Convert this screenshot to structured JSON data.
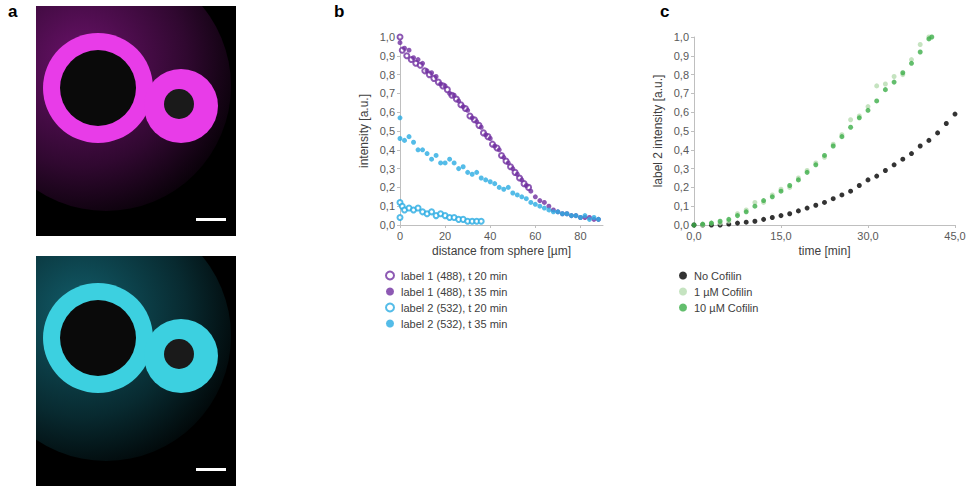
{
  "panel_labels": [
    "a",
    "b",
    "c"
  ],
  "chart_data": [
    {
      "type": "scatter",
      "x_label": "distance from sphere [µm]",
      "y_label": "intensity [a.u.]",
      "xlim": [
        0,
        90
      ],
      "xticks": [
        0,
        20,
        40,
        60,
        80
      ],
      "ylim": [
        0,
        1
      ],
      "yticks": [
        {
          "value": 0,
          "label": "0,0"
        },
        {
          "value": 0.1,
          "label": "0,1"
        },
        {
          "value": 0.2,
          "label": "0,2"
        },
        {
          "value": 0.3,
          "label": "0,3"
        },
        {
          "value": 0.4,
          "label": "0,4"
        },
        {
          "value": 0.5,
          "label": "0,5"
        },
        {
          "value": 0.6,
          "label": "0,6"
        },
        {
          "value": 0.7,
          "label": "0,7"
        },
        {
          "value": 0.8,
          "label": "0,8"
        },
        {
          "value": 0.9,
          "label": "0,9"
        },
        {
          "value": 1,
          "label": "1,0"
        }
      ],
      "grid": false,
      "legend": "below",
      "series": [
        {
          "name": "label 1 (488), t 20 min",
          "color": "#7030a0",
          "marker": "open circle",
          "x": [
            0,
            1,
            3,
            5,
            7,
            9,
            11,
            13,
            15,
            17,
            19,
            21,
            23,
            25,
            27,
            29,
            31,
            33,
            35,
            37,
            39,
            41,
            43,
            45,
            47,
            49,
            51,
            53,
            55,
            57
          ],
          "values": [
            1.0,
            0.93,
            0.9,
            0.88,
            0.86,
            0.85,
            0.82,
            0.8,
            0.78,
            0.76,
            0.74,
            0.72,
            0.69,
            0.67,
            0.64,
            0.62,
            0.58,
            0.56,
            0.53,
            0.49,
            0.47,
            0.43,
            0.41,
            0.37,
            0.34,
            0.31,
            0.28,
            0.25,
            0.22,
            0.2
          ]
        },
        {
          "name": "label 1 (488), t 35 min",
          "color": "#7030a0",
          "marker": "circle",
          "x": [
            0,
            2,
            4,
            6,
            8,
            10,
            12,
            14,
            16,
            18,
            20,
            22,
            24,
            26,
            28,
            30,
            32,
            34,
            36,
            38,
            40,
            42,
            44,
            46,
            48,
            50,
            52,
            54,
            56,
            58,
            60,
            62,
            64,
            66,
            68,
            70,
            72,
            74,
            76,
            78,
            80,
            82,
            84,
            86,
            88
          ],
          "values": [
            0.97,
            0.94,
            0.93,
            0.89,
            0.88,
            0.86,
            0.82,
            0.81,
            0.79,
            0.75,
            0.74,
            0.7,
            0.69,
            0.66,
            0.63,
            0.61,
            0.57,
            0.55,
            0.52,
            0.48,
            0.46,
            0.42,
            0.4,
            0.36,
            0.33,
            0.3,
            0.27,
            0.24,
            0.21,
            0.18,
            0.15,
            0.13,
            0.12,
            0.1,
            0.08,
            0.07,
            0.06,
            0.06,
            0.05,
            0.05,
            0.04,
            0.04,
            0.04,
            0.03,
            0.03
          ]
        },
        {
          "name": "label 2 (532), t 20 min",
          "color": "#29abe2",
          "marker": "open circle",
          "x": [
            0,
            0,
            1,
            2,
            4,
            6,
            8,
            10,
            12,
            14,
            16,
            18,
            20,
            22,
            24,
            26,
            28,
            30,
            32,
            34,
            36
          ],
          "values": [
            0.12,
            0.04,
            0.1,
            0.08,
            0.09,
            0.08,
            0.09,
            0.07,
            0.06,
            0.07,
            0.05,
            0.06,
            0.05,
            0.04,
            0.04,
            0.03,
            0.03,
            0.02,
            0.02,
            0.02,
            0.02
          ]
        },
        {
          "name": "label 2 (532), t 35 min",
          "color": "#29abe2",
          "marker": "circle",
          "x": [
            0,
            0,
            2,
            4,
            6,
            8,
            10,
            12,
            14,
            16,
            18,
            20,
            22,
            24,
            26,
            28,
            30,
            32,
            34,
            36,
            38,
            40,
            42,
            44,
            46,
            48,
            50,
            52,
            54,
            56,
            58,
            60,
            62,
            64,
            66,
            68,
            70,
            72,
            74,
            76,
            78,
            80,
            82,
            84,
            86,
            88
          ],
          "values": [
            0.57,
            0.46,
            0.45,
            0.47,
            0.44,
            0.4,
            0.4,
            0.38,
            0.35,
            0.37,
            0.33,
            0.33,
            0.35,
            0.33,
            0.3,
            0.31,
            0.28,
            0.27,
            0.28,
            0.25,
            0.24,
            0.23,
            0.22,
            0.2,
            0.19,
            0.2,
            0.17,
            0.16,
            0.15,
            0.14,
            0.12,
            0.11,
            0.1,
            0.09,
            0.08,
            0.07,
            0.07,
            0.06,
            0.06,
            0.05,
            0.05,
            0.04,
            0.05,
            0.03,
            0.04,
            0.03
          ]
        }
      ]
    },
    {
      "type": "scatter",
      "x_label": "time [min]",
      "y_label": "label 2 intensity [a.u.]",
      "xlim": [
        0,
        45
      ],
      "xticks": [
        {
          "value": 0,
          "label": "0,0"
        },
        {
          "value": 15,
          "label": "15,0"
        },
        {
          "value": 30,
          "label": "30,0"
        },
        {
          "value": 45,
          "label": "45,0"
        }
      ],
      "ylim": [
        0,
        1
      ],
      "yticks": [
        {
          "value": 0,
          "label": "0,0"
        },
        {
          "value": 0.1,
          "label": "0,1"
        },
        {
          "value": 0.2,
          "label": "0,2"
        },
        {
          "value": 0.3,
          "label": "0,3"
        },
        {
          "value": 0.4,
          "label": "0,4"
        },
        {
          "value": 0.5,
          "label": "0,5"
        },
        {
          "value": 0.6,
          "label": "0,6"
        },
        {
          "value": 0.7,
          "label": "0,7"
        },
        {
          "value": 0.8,
          "label": "0,8"
        },
        {
          "value": 0.9,
          "label": "0,9"
        },
        {
          "value": 1,
          "label": "1,0"
        }
      ],
      "grid": false,
      "legend": "below",
      "series": [
        {
          "name": "No Cofilin",
          "color": "#000000",
          "marker": "circle",
          "x": [
            0,
            1.5,
            3,
            4.5,
            6,
            7.5,
            9,
            10.5,
            12,
            13.5,
            15,
            16.5,
            18,
            19.5,
            21,
            22.5,
            24,
            25.5,
            27,
            28.5,
            30,
            31.5,
            33,
            34.5,
            36,
            37.5,
            39,
            40.5,
            42,
            43.5,
            45
          ],
          "values": [
            0,
            0,
            0,
            0,
            0.005,
            0.01,
            0.015,
            0.02,
            0.03,
            0.04,
            0.05,
            0.06,
            0.075,
            0.09,
            0.105,
            0.12,
            0.14,
            0.16,
            0.18,
            0.21,
            0.24,
            0.26,
            0.29,
            0.32,
            0.35,
            0.38,
            0.42,
            0.45,
            0.49,
            0.54,
            0.59
          ]
        },
        {
          "name": "1 µM Cofilin",
          "color": "#b6dcb0",
          "marker": "circle",
          "x": [
            1.5,
            3,
            4.5,
            6,
            7.5,
            9,
            10.5,
            12,
            13.5,
            15,
            16.5,
            18,
            19.5,
            21,
            22.5,
            24,
            25.5,
            27,
            28.5,
            30,
            31.5,
            33,
            34.5,
            36,
            37.5,
            39,
            40.5
          ],
          "values": [
            0,
            0.01,
            0.01,
            0.02,
            0.06,
            0.08,
            0.12,
            0.12,
            0.16,
            0.19,
            0.2,
            0.25,
            0.29,
            0.33,
            0.36,
            0.43,
            0.48,
            0.56,
            0.58,
            0.63,
            0.74,
            0.75,
            0.79,
            0.8,
            0.88,
            0.96,
            1.0
          ]
        },
        {
          "name": "10 µM Cofilin",
          "color": "#3cae49",
          "marker": "circle",
          "x": [
            0,
            1.5,
            3,
            4.5,
            6,
            7.5,
            9,
            10.5,
            12,
            13.5,
            15,
            16.5,
            18,
            19.5,
            21,
            22.5,
            24,
            25.5,
            27,
            28.5,
            30,
            31.5,
            33,
            34.5,
            36,
            37.5,
            39,
            40.5,
            41
          ],
          "values": [
            0,
            0.005,
            0.01,
            0.02,
            0.03,
            0.05,
            0.07,
            0.1,
            0.13,
            0.15,
            0.18,
            0.21,
            0.24,
            0.28,
            0.32,
            0.37,
            0.42,
            0.47,
            0.52,
            0.57,
            0.61,
            0.66,
            0.72,
            0.76,
            0.81,
            0.86,
            0.92,
            0.99,
            1.0
          ]
        }
      ]
    }
  ]
}
